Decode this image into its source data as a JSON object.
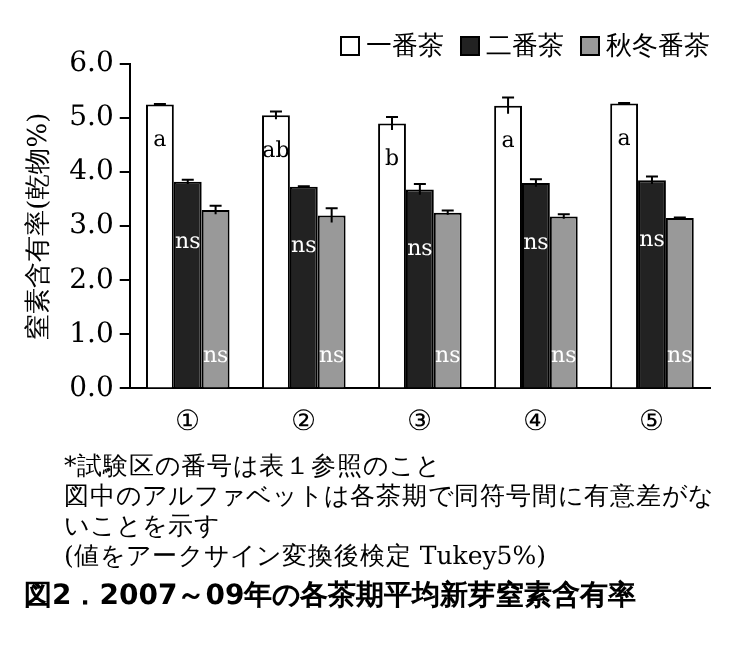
{
  "chart_data": {
    "type": "bar",
    "title": "図2．2007～09年の各茶期平均新芽窒素含有率",
    "ylabel": "窒素含有率(乾物%)",
    "categories": [
      "①",
      "②",
      "③",
      "④",
      "⑤"
    ],
    "series": [
      {
        "name": "一番茶",
        "color": "#ffffff",
        "values": [
          5.25,
          5.05,
          4.9,
          5.23,
          5.27
        ],
        "value_labels": [
          "a",
          "ab",
          "b",
          "a",
          "a"
        ],
        "errors": [
          0.01,
          0.07,
          0.12,
          0.15,
          0.01
        ]
      },
      {
        "name": "二番茶",
        "color": "#222222",
        "values": [
          3.82,
          3.73,
          3.68,
          3.8,
          3.85
        ],
        "value_labels": [
          "ns",
          "ns",
          "ns",
          "ns",
          "ns"
        ],
        "errors": [
          0.04,
          0.01,
          0.1,
          0.07,
          0.07
        ]
      },
      {
        "name": "秋冬番茶",
        "color": "#999999",
        "values": [
          3.3,
          3.2,
          3.25,
          3.18,
          3.15
        ],
        "value_labels": [
          "ns",
          "ns",
          "ns",
          "ns",
          "ns"
        ],
        "errors": [
          0.08,
          0.13,
          0.04,
          0.04,
          0.01
        ]
      }
    ],
    "ylim": [
      0,
      6
    ],
    "yticks": [
      {
        "value": 0,
        "label": "0.0"
      },
      {
        "value": 1,
        "label": "1.0"
      },
      {
        "value": 2,
        "label": "2.0"
      },
      {
        "value": 3,
        "label": "3.0"
      },
      {
        "value": 4,
        "label": "4.0"
      },
      {
        "value": 5,
        "label": "5.0"
      },
      {
        "value": 6,
        "label": "6.0"
      }
    ],
    "legend": "top right",
    "grid": false,
    "annotations": [
      "*試験区の番号は表１参照のこと",
      "図中のアルファベットは各茶期で同符号間に有意差がないことを示す",
      "(値をアークサイン変換後検定 Tukey5%)"
    ]
  }
}
